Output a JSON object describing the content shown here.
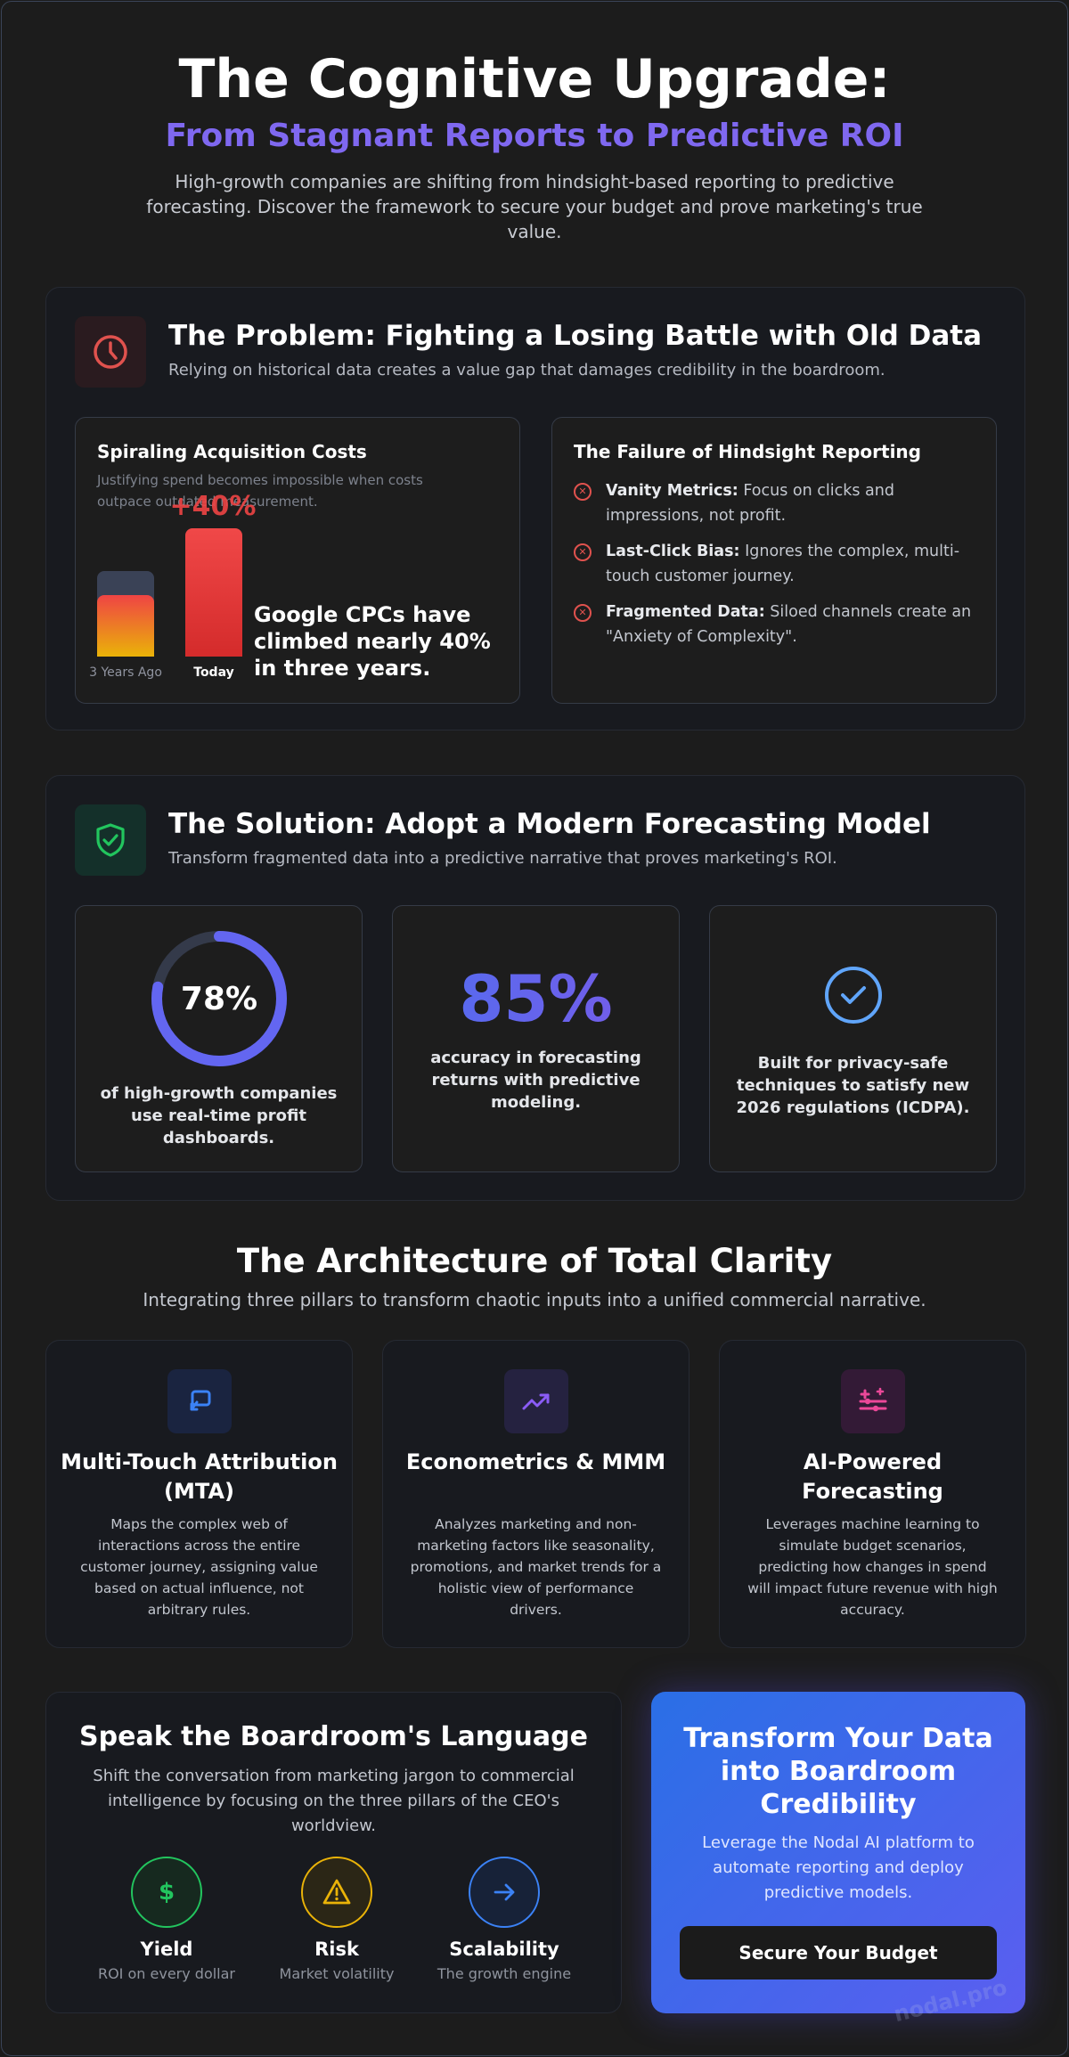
{
  "hero": {
    "title": "The Cognitive Upgrade:",
    "subtitle": "From Stagnant Reports to Predictive ROI",
    "description": "High-growth companies are shifting from hindsight-based reporting to predictive forecasting. Discover the framework to secure your budget and prove marketing's true value."
  },
  "problem": {
    "icon": "clock-icon",
    "title": "The Problem: Fighting a Losing Battle with Old Data",
    "description": "Relying on historical data creates a value gap that damages credibility in the boardroom.",
    "costs_card": {
      "title": "Spiraling Acquisition Costs",
      "description": "Justifying spend becomes impossible when costs outpace outdated measurement.",
      "increase_label": "+40%",
      "bar_old_label": "3 Years Ago",
      "bar_new_label": "Today",
      "stat": "Google CPCs have climbed nearly 40% in three years."
    },
    "failure_card": {
      "title": "The Failure of Hindsight Reporting",
      "items": [
        {
          "term": "Vanity Metrics:",
          "text": " Focus on clicks and impressions, not profit."
        },
        {
          "term": "Last-Click Bias:",
          "text": " Ignores the complex, multi-touch customer journey."
        },
        {
          "term": "Fragmented Data:",
          "text": " Siloed channels create an \"Anxiety of Complexity\"."
        }
      ]
    }
  },
  "solution": {
    "icon": "shield-check-icon",
    "title": "The Solution: Adopt a Modern Forecasting Model",
    "description": "Transform fragmented data into a predictive narrative that proves marketing's ROI.",
    "cards": [
      {
        "value": "78%",
        "fraction": 0.78,
        "text": "of high-growth companies use real-time profit dashboards."
      },
      {
        "value": "85%",
        "text": "accuracy in forecasting returns with predictive modeling."
      },
      {
        "icon": "check-circle-icon",
        "text": "Built for privacy-safe techniques to satisfy new 2026 regulations (ICDPA)."
      }
    ]
  },
  "architecture": {
    "title": "The Architecture of Total Clarity",
    "description": "Integrating three pillars to transform chaotic inputs into a unified commercial narrative.",
    "pillars": [
      {
        "icon": "touch-pointer-icon",
        "title": "Multi-Touch Attribution (MTA)",
        "description": "Maps the complex web of interactions across the entire customer journey, assigning value based on actual influence, not arbitrary rules."
      },
      {
        "icon": "trending-up-icon",
        "title": "Econometrics & MMM",
        "description": "Analyzes marketing and non-marketing factors like seasonality, promotions, and market trends for a holistic view of performance drivers."
      },
      {
        "icon": "sparkles-icon",
        "title": "AI-Powered Forecasting",
        "description": "Leverages machine learning to simulate budget scenarios, predicting how changes in spend will impact future revenue with high accuracy."
      }
    ]
  },
  "boardroom": {
    "title": "Speak the Boardroom's Language",
    "description": "Shift the conversation from marketing jargon to commercial intelligence by focusing on the three pillars of the CEO's worldview.",
    "pillars": [
      {
        "icon": "dollar-icon",
        "name": "Yield",
        "sub": "ROI on every dollar",
        "color": "#22c55e"
      },
      {
        "icon": "warning-icon",
        "name": "Risk",
        "sub": "Market volatility",
        "color": "#eab308"
      },
      {
        "icon": "arrow-right-icon",
        "name": "Scalability",
        "sub": "The growth engine",
        "color": "#3b82f6"
      }
    ]
  },
  "cta": {
    "title": "Transform Your Data into Boardroom Credibility",
    "description": "Leverage the Nodal AI platform to automate reporting and deploy predictive models.",
    "button": "Secure Your Budget"
  },
  "watermark": "nodal.pro",
  "colors": {
    "background": "#1c1c1c",
    "accent_purple": "#6366f1",
    "danger": "#ef4444",
    "success": "#22c55e"
  }
}
